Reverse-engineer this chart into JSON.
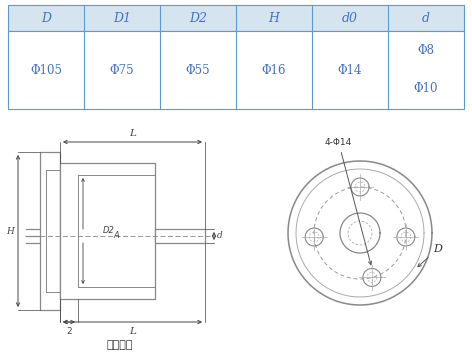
{
  "table_headers": [
    "D",
    "D1",
    "D2",
    "H",
    "d0",
    "d"
  ],
  "header_bg": "#d6e4f0",
  "border_color": "#5b9bd5",
  "text_color": "#4472c4",
  "title_label": "固定法兰",
  "phi105": "Φ105",
  "phi75": "Φ75",
  "phi55": "Φ55",
  "phi16": "Φ16",
  "phi14": "Φ14",
  "phi8": "Φ8",
  "phi10": "Φ10",
  "annot_4phi14": "4-Φ14",
  "label_D": "D",
  "label_D2": "D2",
  "label_A": "A",
  "label_d": "d",
  "label_L": "L",
  "label_H": "H",
  "label_2": "2",
  "dim_color": "#444444",
  "draw_color": "#888888"
}
